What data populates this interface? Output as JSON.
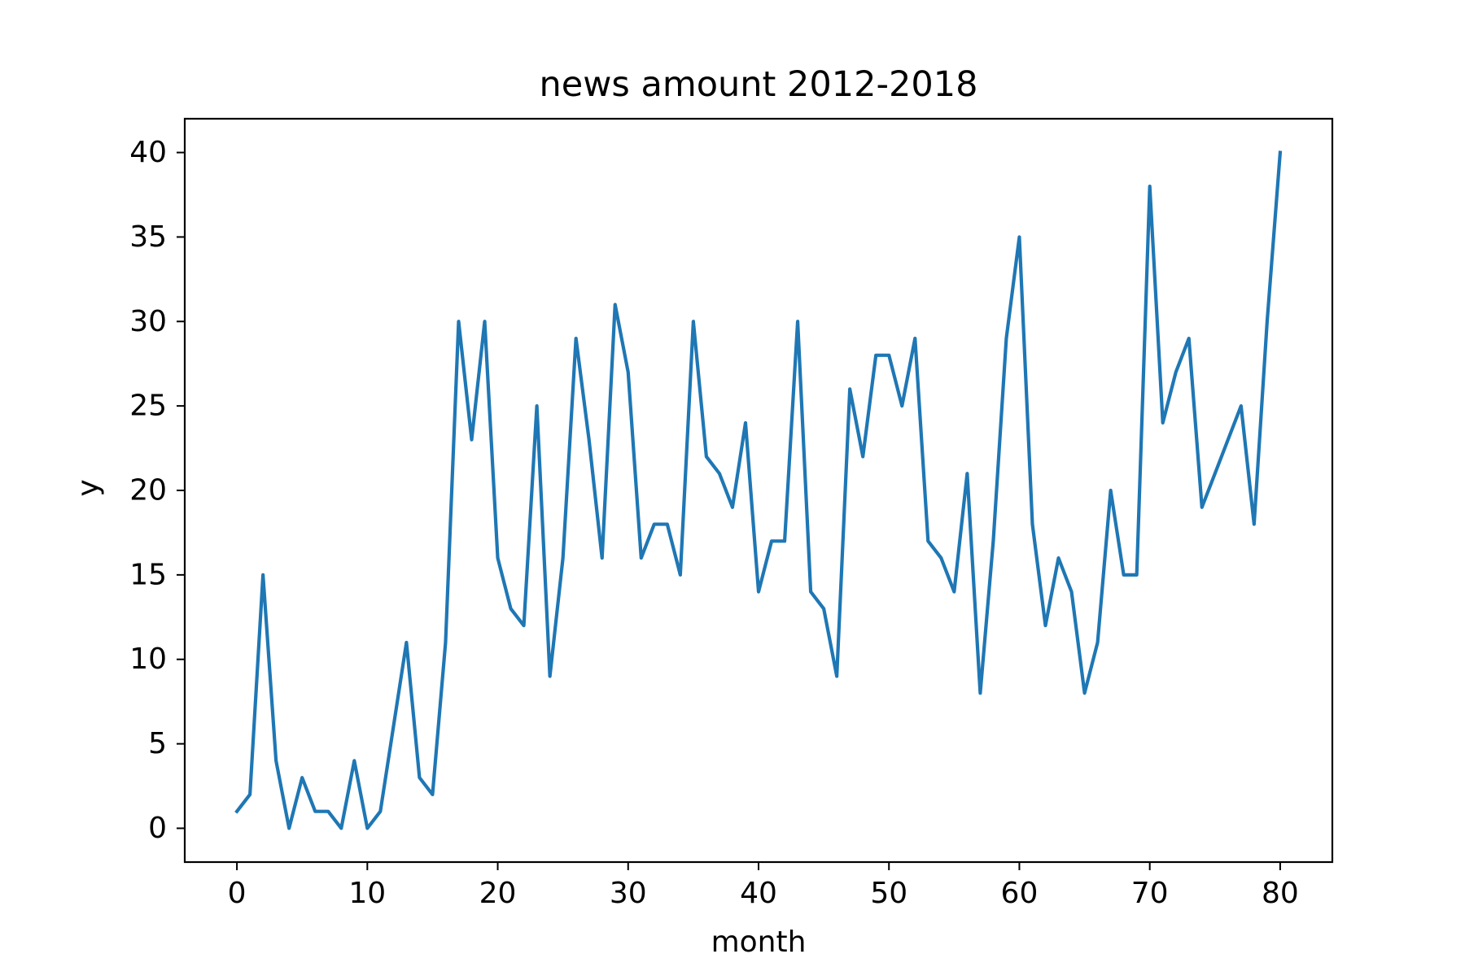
{
  "chart_data": {
    "type": "line",
    "title": "news amount 2012-2018",
    "xlabel": "month",
    "ylabel": "y",
    "xlim": [
      -4,
      84
    ],
    "ylim": [
      -2,
      42
    ],
    "xticks": [
      0,
      10,
      20,
      30,
      40,
      50,
      60,
      70,
      80
    ],
    "yticks": [
      0,
      5,
      10,
      15,
      20,
      25,
      30,
      35,
      40
    ],
    "grid": false,
    "series": [
      {
        "color": "#1f77b4",
        "x": [
          0,
          1,
          2,
          3,
          4,
          5,
          6,
          7,
          8,
          9,
          10,
          11,
          12,
          13,
          14,
          15,
          16,
          17,
          18,
          19,
          20,
          21,
          22,
          23,
          24,
          25,
          26,
          27,
          28,
          29,
          30,
          31,
          32,
          33,
          34,
          35,
          36,
          37,
          38,
          39,
          40,
          41,
          42,
          43,
          44,
          45,
          46,
          47,
          48,
          49,
          50,
          51,
          52,
          53,
          54,
          55,
          56,
          57,
          58,
          59,
          60,
          61,
          62,
          63,
          64,
          65,
          66,
          67,
          68,
          69,
          70,
          71,
          72,
          73,
          74,
          75,
          76,
          77,
          78,
          79,
          80
        ],
        "values": [
          1,
          2,
          15,
          4,
          0,
          3,
          1,
          1,
          0,
          4,
          0,
          1,
          6,
          11,
          3,
          2,
          11,
          30,
          23,
          30,
          16,
          13,
          12,
          25,
          9,
          16,
          29,
          23,
          16,
          31,
          27,
          16,
          18,
          18,
          15,
          30,
          22,
          21,
          19,
          24,
          14,
          17,
          17,
          30,
          14,
          13,
          9,
          26,
          22,
          28,
          28,
          25,
          29,
          17,
          16,
          14,
          21,
          8,
          17,
          29,
          35,
          18,
          12,
          16,
          14,
          8,
          11,
          20,
          15,
          15,
          38,
          24,
          27,
          29,
          19,
          21,
          23,
          25,
          18,
          30,
          40
        ]
      }
    ]
  }
}
